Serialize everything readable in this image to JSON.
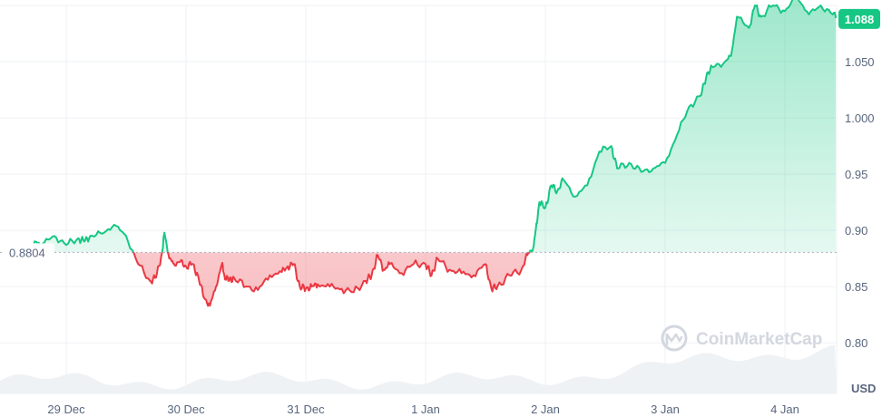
{
  "chart_data": {
    "type": "line",
    "y_unit": "USD",
    "baseline_label": "0.8804",
    "baseline": 0.8804,
    "current_label": "1.088",
    "current": 1.088,
    "watermark": "CoinMarketCap",
    "ylim": [
      0.755,
      1.1
    ],
    "y_ticks": [
      {
        "value": 0.8,
        "label": "0.80"
      },
      {
        "value": 0.85,
        "label": "0.85"
      },
      {
        "value": 0.9,
        "label": "0.90"
      },
      {
        "value": 0.95,
        "label": "0.95"
      },
      {
        "value": 1.0,
        "label": "1.000"
      },
      {
        "value": 1.05,
        "label": "1.050"
      }
    ],
    "x_ticks": [
      {
        "day": 0,
        "label": "29 Dec"
      },
      {
        "day": 1,
        "label": "30 Dec"
      },
      {
        "day": 2,
        "label": "31 Dec"
      },
      {
        "day": 3,
        "label": "1 Jan"
      },
      {
        "day": 4,
        "label": "2 Jan"
      },
      {
        "day": 5,
        "label": "3 Jan"
      },
      {
        "day": 6,
        "label": "4 Jan"
      }
    ],
    "grid": true,
    "colors": {
      "up": "#16c784",
      "down": "#ea3943",
      "grid": "#eff2f5",
      "baseline": "#a6b0c3",
      "volume": "#eff2f5"
    },
    "series": [
      {
        "x": [
          -0.35,
          -0.28,
          -0.26,
          -0.2,
          -0.1,
          0.0,
          0.1,
          0.15,
          0.2,
          0.3,
          0.4,
          0.5,
          0.6,
          0.7,
          0.75,
          0.8,
          0.82,
          0.86,
          0.9,
          0.95,
          1.0,
          1.05,
          1.1,
          1.15,
          1.2,
          1.25,
          1.3,
          1.32,
          1.36,
          1.4,
          1.5,
          1.6,
          1.7,
          1.8,
          1.85,
          1.9,
          1.95,
          2.0,
          2.05,
          2.1,
          2.2,
          2.3,
          2.4,
          2.5,
          2.55,
          2.6,
          2.65,
          2.7,
          2.8,
          2.9,
          3.0,
          3.05,
          3.1,
          3.2,
          3.3,
          3.4,
          3.5,
          3.55,
          3.6,
          3.7,
          3.8,
          3.85,
          3.9,
          3.92,
          3.95,
          4.0,
          4.05,
          4.1,
          4.15,
          4.25,
          4.35,
          4.45,
          4.55,
          4.6,
          4.7,
          4.8,
          4.9,
          5.0,
          5.1,
          5.2,
          5.3,
          5.35,
          5.4,
          5.5,
          5.55,
          5.6,
          5.7,
          5.75,
          5.8,
          5.9,
          6.0,
          6.1,
          6.2,
          6.3,
          6.4,
          6.45
        ],
        "y": [
          0.8804,
          0.8805,
          0.89,
          0.888,
          0.895,
          0.887,
          0.893,
          0.89,
          0.895,
          0.897,
          0.905,
          0.895,
          0.87,
          0.855,
          0.858,
          0.88,
          0.898,
          0.875,
          0.87,
          0.872,
          0.868,
          0.87,
          0.86,
          0.84,
          0.833,
          0.85,
          0.87,
          0.86,
          0.855,
          0.858,
          0.85,
          0.847,
          0.86,
          0.863,
          0.868,
          0.87,
          0.85,
          0.848,
          0.85,
          0.852,
          0.85,
          0.848,
          0.845,
          0.855,
          0.86,
          0.878,
          0.865,
          0.87,
          0.862,
          0.87,
          0.87,
          0.86,
          0.875,
          0.865,
          0.862,
          0.86,
          0.87,
          0.848,
          0.85,
          0.86,
          0.865,
          0.878,
          0.885,
          0.9,
          0.925,
          0.92,
          0.94,
          0.935,
          0.945,
          0.93,
          0.94,
          0.97,
          0.975,
          0.955,
          0.96,
          0.952,
          0.955,
          0.96,
          0.985,
          1.01,
          1.02,
          1.04,
          1.045,
          1.05,
          1.055,
          1.09,
          1.08,
          1.1,
          1.09,
          1.1,
          1.095,
          1.108,
          1.092,
          1.1,
          1.092,
          1.088
        ]
      }
    ]
  }
}
